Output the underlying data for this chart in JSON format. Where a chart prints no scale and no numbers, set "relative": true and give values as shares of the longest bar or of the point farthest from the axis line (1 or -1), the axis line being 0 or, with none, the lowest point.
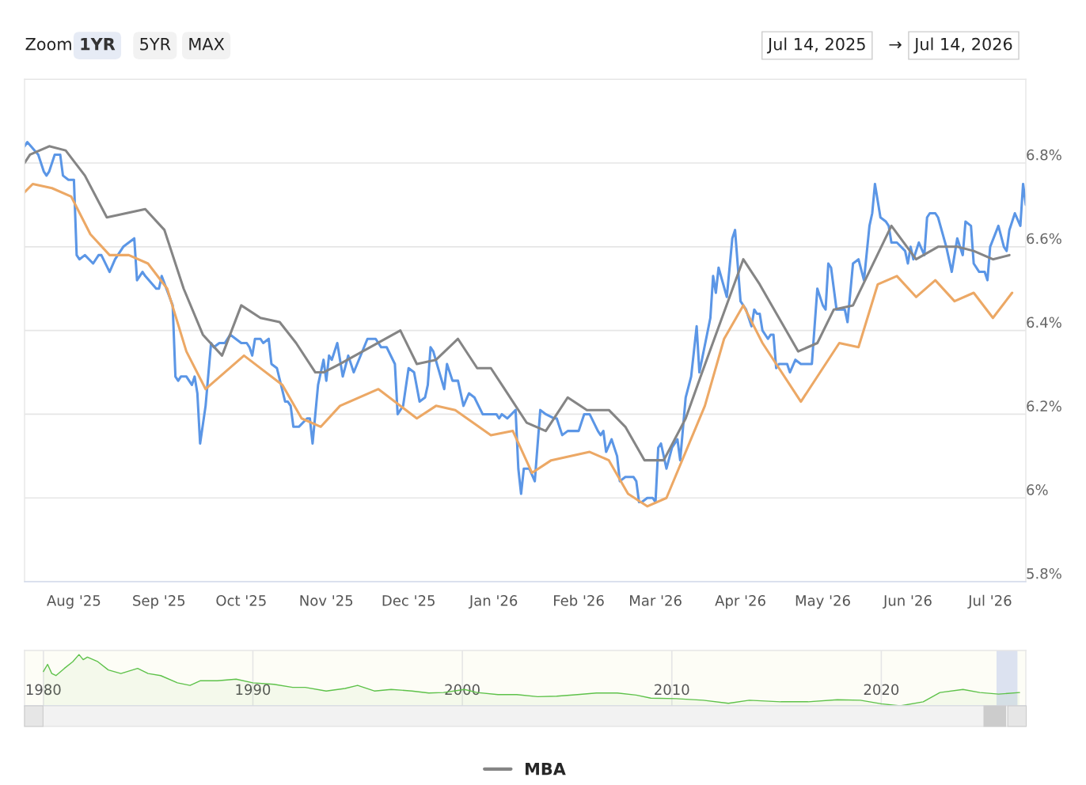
{
  "chart_data": [
    {
      "type": "line",
      "annotations": [
        "Zoom",
        "1YR",
        "5YR",
        "MAX",
        "Jul 14, 2025",
        "→",
        "Jul 14, 2026"
      ],
      "xlim": [
        "2025-07-14",
        "2026-07-14"
      ],
      "xticks": [
        {
          "value": "2025-08-01",
          "label": "Aug '25"
        },
        {
          "value": "2025-09-01",
          "label": "Sep '25"
        },
        {
          "value": "2025-10-01",
          "label": "Oct '25"
        },
        {
          "value": "2025-11-01",
          "label": "Nov '25"
        },
        {
          "value": "2025-12-01",
          "label": "Dec '25"
        },
        {
          "value": "2026-01-01",
          "label": "Jan '26"
        },
        {
          "value": "2026-02-01",
          "label": "Feb '26"
        },
        {
          "value": "2026-03-01",
          "label": "Mar '26"
        },
        {
          "value": "2026-04-01",
          "label": "Apr '26"
        },
        {
          "value": "2026-05-01",
          "label": "May '26"
        },
        {
          "value": "2026-06-01",
          "label": "Jun '26"
        },
        {
          "value": "2026-07-01",
          "label": "Jul '26"
        }
      ],
      "ylim": [
        5.8,
        7.0
      ],
      "yticks": [
        {
          "value": 5.8,
          "label": "5.8%"
        },
        {
          "value": 6.0,
          "label": "6%"
        },
        {
          "value": 6.2,
          "label": "6.2%"
        },
        {
          "value": 6.4,
          "label": "6.4%"
        },
        {
          "value": 6.6,
          "label": "6.6%"
        },
        {
          "value": 6.8,
          "label": "6.8%"
        },
        {
          "value": 7.0,
          "label": null
        }
      ],
      "grid": "y",
      "legend": "bottom",
      "marker": "none",
      "line_style": "solid",
      "series": [
        {
          "color": "#5b96e6",
          "x": [
            "2025-07-14",
            "2025-07-15",
            "2025-07-19",
            "2025-07-21",
            "2025-07-22",
            "2025-07-23",
            "2025-07-25",
            "2025-07-27",
            "2025-07-28",
            "2025-07-30",
            "2025-08-01",
            "2025-08-02",
            "2025-08-03",
            "2025-08-05",
            "2025-08-08",
            "2025-08-10",
            "2025-08-11",
            "2025-08-14",
            "2025-08-16",
            "2025-08-19",
            "2025-08-23",
            "2025-08-24",
            "2025-08-26",
            "2025-08-27",
            "2025-08-31",
            "2025-09-01",
            "2025-09-02",
            "2025-09-06",
            "2025-09-07",
            "2025-09-08",
            "2025-09-09",
            "2025-09-11",
            "2025-09-13",
            "2025-09-14",
            "2025-09-15",
            "2025-09-16",
            "2025-09-18",
            "2025-09-20",
            "2025-09-21",
            "2025-09-23",
            "2025-09-25",
            "2025-09-27",
            "2025-09-29",
            "2025-10-01",
            "2025-10-03",
            "2025-10-04",
            "2025-10-05",
            "2025-10-06",
            "2025-10-08",
            "2025-10-09",
            "2025-10-11",
            "2025-10-12",
            "2025-10-14",
            "2025-10-17",
            "2025-10-18",
            "2025-10-19",
            "2025-10-20",
            "2025-10-22",
            "2025-10-25",
            "2025-10-26",
            "2025-10-27",
            "2025-10-29",
            "2025-10-31",
            "2025-11-01",
            "2025-11-02",
            "2025-11-03",
            "2025-11-05",
            "2025-11-07",
            "2025-11-09",
            "2025-11-11",
            "2025-11-16",
            "2025-11-19",
            "2025-11-21",
            "2025-11-23",
            "2025-11-26",
            "2025-11-27",
            "2025-11-29",
            "2025-12-01",
            "2025-12-03",
            "2025-12-05",
            "2025-12-07",
            "2025-12-08",
            "2025-12-09",
            "2025-12-10",
            "2025-12-14",
            "2025-12-15",
            "2025-12-17",
            "2025-12-19",
            "2025-12-21",
            "2025-12-23",
            "2025-12-25",
            "2025-12-28",
            "2025-12-30",
            "2026-01-02",
            "2026-01-03",
            "2026-01-04",
            "2026-01-06",
            "2026-01-09",
            "2026-01-10",
            "2026-01-11",
            "2026-01-12",
            "2026-01-14",
            "2026-01-16",
            "2026-01-18",
            "2026-01-20",
            "2026-01-23",
            "2026-01-24",
            "2026-01-26",
            "2026-01-28",
            "2026-02-01",
            "2026-02-02",
            "2026-02-03",
            "2026-02-05",
            "2026-02-08",
            "2026-02-09",
            "2026-02-10",
            "2026-02-11",
            "2026-02-13",
            "2026-02-15",
            "2026-02-16",
            "2026-02-18",
            "2026-02-21",
            "2026-02-22",
            "2026-02-23",
            "2026-02-24",
            "2026-02-26",
            "2026-02-28",
            "2026-03-01",
            "2026-03-02",
            "2026-03-03",
            "2026-03-05",
            "2026-03-07",
            "2026-03-09",
            "2026-03-10",
            "2026-03-12",
            "2026-03-14",
            "2026-03-16",
            "2026-03-17",
            "2026-03-21",
            "2026-03-22",
            "2026-03-23",
            "2026-03-24",
            "2026-03-27",
            "2026-03-29",
            "2026-03-30",
            "2026-04-01",
            "2026-04-03",
            "2026-04-05",
            "2026-04-06",
            "2026-04-07",
            "2026-04-08",
            "2026-04-09",
            "2026-04-11",
            "2026-04-12",
            "2026-04-13",
            "2026-04-14",
            "2026-04-15",
            "2026-04-18",
            "2026-04-19",
            "2026-04-21",
            "2026-04-23",
            "2026-04-27",
            "2026-04-29",
            "2026-05-01",
            "2026-05-02",
            "2026-05-03",
            "2026-05-04",
            "2026-05-06",
            "2026-05-09",
            "2026-05-10",
            "2026-05-12",
            "2026-05-14",
            "2026-05-16",
            "2026-05-18",
            "2026-05-19",
            "2026-05-20",
            "2026-05-22",
            "2026-05-24",
            "2026-05-25",
            "2026-05-26",
            "2026-05-28",
            "2026-05-31",
            "2026-06-01",
            "2026-06-02",
            "2026-06-03",
            "2026-06-05",
            "2026-06-07",
            "2026-06-08",
            "2026-06-09",
            "2026-06-11",
            "2026-06-12",
            "2026-06-15",
            "2026-06-17",
            "2026-06-19",
            "2026-06-21",
            "2026-06-22",
            "2026-06-24",
            "2026-06-25",
            "2026-06-27",
            "2026-06-29",
            "2026-06-30",
            "2026-07-01",
            "2026-07-04",
            "2026-07-06",
            "2026-07-07",
            "2026-07-08",
            "2026-07-10",
            "2026-07-12",
            "2026-07-13",
            "2026-07-14"
          ],
          "values": [
            6.84,
            6.85,
            6.82,
            6.78,
            6.77,
            6.78,
            6.82,
            6.82,
            6.77,
            6.76,
            6.76,
            6.58,
            6.57,
            6.58,
            6.56,
            6.58,
            6.58,
            6.54,
            6.57,
            6.6,
            6.62,
            6.52,
            6.54,
            6.53,
            6.5,
            6.5,
            6.53,
            6.46,
            6.29,
            6.28,
            6.29,
            6.29,
            6.27,
            6.29,
            6.25,
            6.13,
            6.22,
            6.37,
            6.36,
            6.37,
            6.37,
            6.39,
            6.38,
            6.37,
            6.37,
            6.36,
            6.34,
            6.38,
            6.38,
            6.37,
            6.38,
            6.32,
            6.31,
            6.23,
            6.23,
            6.22,
            6.17,
            6.17,
            6.19,
            6.19,
            6.13,
            6.27,
            6.33,
            6.28,
            6.34,
            6.33,
            6.37,
            6.29,
            6.34,
            6.3,
            6.38,
            6.38,
            6.36,
            6.36,
            6.32,
            6.2,
            6.22,
            6.31,
            6.3,
            6.23,
            6.24,
            6.27,
            6.36,
            6.35,
            6.26,
            6.32,
            6.28,
            6.28,
            6.22,
            6.25,
            6.24,
            6.2,
            6.2,
            6.2,
            6.19,
            6.2,
            6.19,
            6.21,
            6.07,
            6.01,
            6.07,
            6.07,
            6.04,
            6.21,
            6.2,
            6.19,
            6.19,
            6.15,
            6.16,
            6.16,
            6.18,
            6.2,
            6.2,
            6.16,
            6.15,
            6.16,
            6.11,
            6.14,
            6.1,
            6.04,
            6.05,
            6.05,
            6.04,
            5.99,
            5.99,
            6.0,
            6.0,
            5.99,
            6.12,
            6.13,
            6.07,
            6.12,
            6.14,
            6.09,
            6.24,
            6.29,
            6.41,
            6.3,
            6.43,
            6.53,
            6.49,
            6.55,
            6.48,
            6.62,
            6.64,
            6.47,
            6.45,
            6.41,
            6.45,
            6.44,
            6.44,
            6.4,
            6.38,
            6.39,
            6.39,
            6.31,
            6.32,
            6.32,
            6.3,
            6.33,
            6.32,
            6.32,
            6.5,
            6.46,
            6.45,
            6.56,
            6.55,
            6.45,
            6.45,
            6.42,
            6.56,
            6.57,
            6.52,
            6.65,
            6.68,
            6.75,
            6.67,
            6.66,
            6.65,
            6.61,
            6.61,
            6.59,
            6.56,
            6.6,
            6.57,
            6.61,
            6.58,
            6.67,
            6.68,
            6.68,
            6.67,
            6.6,
            6.54,
            6.62,
            6.58,
            6.66,
            6.65,
            6.56,
            6.54,
            6.54,
            6.52,
            6.6,
            6.65,
            6.6,
            6.59,
            6.64,
            6.68,
            6.65,
            6.75,
            6.7
          ]
        },
        {
          "name": "MBA",
          "color": "#858585",
          "x": [
            "2025-07-14",
            "2025-07-16",
            "2025-07-23",
            "2025-07-29",
            "2025-08-05",
            "2025-08-13",
            "2025-08-27",
            "2025-09-03",
            "2025-09-10",
            "2025-09-17",
            "2025-09-24",
            "2025-10-01",
            "2025-10-08",
            "2025-10-15",
            "2025-10-21",
            "2025-10-28",
            "2025-10-31",
            "2025-11-06",
            "2025-11-28",
            "2025-12-04",
            "2025-12-11",
            "2025-12-19",
            "2025-12-26",
            "2025-12-31",
            "2026-01-05",
            "2026-01-13",
            "2026-01-20",
            "2026-01-28",
            "2026-02-04",
            "2026-02-12",
            "2026-02-18",
            "2026-02-25",
            "2026-03-04",
            "2026-03-12",
            "2026-03-18",
            "2026-04-02",
            "2026-04-08",
            "2026-04-15",
            "2026-04-22",
            "2026-04-29",
            "2026-05-05",
            "2026-05-12",
            "2026-05-26",
            "2026-06-04",
            "2026-06-12",
            "2026-06-19",
            "2026-06-25",
            "2026-07-02",
            "2026-07-08"
          ],
          "values": [
            6.8,
            6.82,
            6.84,
            6.83,
            6.77,
            6.67,
            6.69,
            6.64,
            6.5,
            6.39,
            6.34,
            6.46,
            6.43,
            6.42,
            6.37,
            6.3,
            6.3,
            6.32,
            6.4,
            6.32,
            6.33,
            6.38,
            6.31,
            6.31,
            6.26,
            6.18,
            6.16,
            6.24,
            6.21,
            6.21,
            6.17,
            6.09,
            6.09,
            6.19,
            6.3,
            6.57,
            6.51,
            6.43,
            6.35,
            6.37,
            6.45,
            6.46,
            6.65,
            6.57,
            6.6,
            6.6,
            6.59,
            6.57,
            6.58
          ]
        },
        {
          "color": "#eca865",
          "x": [
            "2025-07-14",
            "2025-07-17",
            "2025-07-24",
            "2025-07-31",
            "2025-08-07",
            "2025-08-14",
            "2025-08-21",
            "2025-08-28",
            "2025-09-04",
            "2025-09-11",
            "2025-09-18",
            "2025-10-02",
            "2025-10-16",
            "2025-10-23",
            "2025-10-30",
            "2025-11-06",
            "2025-11-20",
            "2025-12-04",
            "2025-12-11",
            "2025-12-18",
            "2025-12-31",
            "2026-01-08",
            "2026-01-15",
            "2026-01-22",
            "2026-02-05",
            "2026-02-12",
            "2026-02-19",
            "2026-02-26",
            "2026-03-05",
            "2026-03-19",
            "2026-03-26",
            "2026-04-02",
            "2026-04-09",
            "2026-04-23",
            "2026-05-07",
            "2026-05-14",
            "2026-05-21",
            "2026-05-28",
            "2026-06-04",
            "2026-06-11",
            "2026-06-18",
            "2026-06-25",
            "2026-07-02",
            "2026-07-09"
          ],
          "values": [
            6.73,
            6.75,
            6.74,
            6.72,
            6.63,
            6.58,
            6.58,
            6.56,
            6.5,
            6.35,
            6.26,
            6.34,
            6.27,
            6.19,
            6.17,
            6.22,
            6.26,
            6.19,
            6.22,
            6.21,
            6.15,
            6.16,
            6.06,
            6.09,
            6.11,
            6.09,
            6.01,
            5.98,
            6.0,
            6.22,
            6.38,
            6.46,
            6.37,
            6.23,
            6.37,
            6.36,
            6.51,
            6.53,
            6.48,
            6.52,
            6.47,
            6.49,
            6.43,
            6.49
          ]
        }
      ]
    },
    {
      "type": "area",
      "relative": true,
      "legend": false,
      "grid": "x",
      "tick_labels": "x",
      "xlim": [
        1979.1,
        2026.9
      ],
      "xticks": [
        1980,
        1990,
        2000,
        2010,
        2020
      ],
      "bands": [
        {
          "axis": "x",
          "from": 2025.5,
          "to": 2026.5,
          "color": "#dce2f0"
        }
      ],
      "series": [
        {
          "color": "#5ec24a",
          "x": [
            1980.0,
            1980.2,
            1980.4,
            1980.6,
            1981.0,
            1981.4,
            1981.7,
            1981.9,
            1982.1,
            1982.6,
            1983.1,
            1983.7,
            1984.5,
            1985.0,
            1985.6,
            1986.4,
            1987.0,
            1987.5,
            1988.3,
            1989.2,
            1990.0,
            1991.0,
            1991.9,
            1992.5,
            1993.5,
            1994.4,
            1995.0,
            1995.8,
            1996.6,
            1997.6,
            1998.4,
            1999.1,
            2000.1,
            2000.7,
            2001.7,
            2002.6,
            2003.6,
            2004.5,
            2005.5,
            2006.4,
            2007.4,
            2008.3,
            2009.0,
            2010.2,
            2011.5,
            2012.7,
            2013.7,
            2015.2,
            2016.5,
            2017.9,
            2019.0,
            2020.0,
            2020.9,
            2022.0,
            2022.8,
            2023.9,
            2024.7,
            2025.6,
            2026.6
          ],
          "values": [
            0.67,
            0.81,
            0.63,
            0.59,
            0.73,
            0.86,
            1.0,
            0.9,
            0.95,
            0.86,
            0.7,
            0.63,
            0.73,
            0.63,
            0.59,
            0.45,
            0.4,
            0.49,
            0.49,
            0.52,
            0.45,
            0.42,
            0.36,
            0.36,
            0.29,
            0.34,
            0.4,
            0.29,
            0.32,
            0.29,
            0.25,
            0.26,
            0.32,
            0.26,
            0.22,
            0.22,
            0.18,
            0.19,
            0.22,
            0.25,
            0.25,
            0.21,
            0.15,
            0.14,
            0.11,
            0.05,
            0.11,
            0.08,
            0.08,
            0.12,
            0.11,
            0.04,
            0.0,
            0.08,
            0.26,
            0.32,
            0.26,
            0.23,
            0.26
          ]
        }
      ]
    }
  ]
}
